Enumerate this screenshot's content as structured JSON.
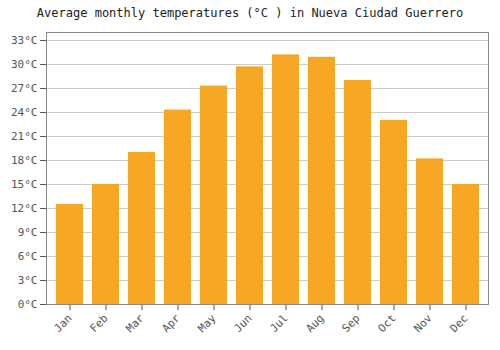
{
  "chart_data": {
    "type": "bar",
    "title": "Average monthly temperatures (°C ) in Nueva Ciudad Guerrero",
    "categories": [
      "Jan",
      "Feb",
      "Mar",
      "Apr",
      "May",
      "Jun",
      "Jul",
      "Aug",
      "Sep",
      "Oct",
      "Nov",
      "Dec"
    ],
    "values": [
      12.5,
      15.0,
      19.0,
      24.3,
      27.3,
      29.7,
      31.2,
      30.9,
      28.0,
      23.0,
      18.2,
      15.0
    ],
    "color": "#F5A623",
    "ylim": [
      0,
      34
    ],
    "yticks": [
      {
        "value": 0,
        "label": "0°C"
      },
      {
        "value": 3,
        "label": "3°C"
      },
      {
        "value": 6,
        "label": "6°C"
      },
      {
        "value": 9,
        "label": "9°C"
      },
      {
        "value": 12,
        "label": "12°C"
      },
      {
        "value": 15,
        "label": "15°C"
      },
      {
        "value": 18,
        "label": "18°C"
      },
      {
        "value": 21,
        "label": "21°C"
      },
      {
        "value": 24,
        "label": "24°C"
      },
      {
        "value": 27,
        "label": "27°C"
      },
      {
        "value": 30,
        "label": "30°C"
      },
      {
        "value": 33,
        "label": "33°C"
      }
    ],
    "grid": true
  }
}
